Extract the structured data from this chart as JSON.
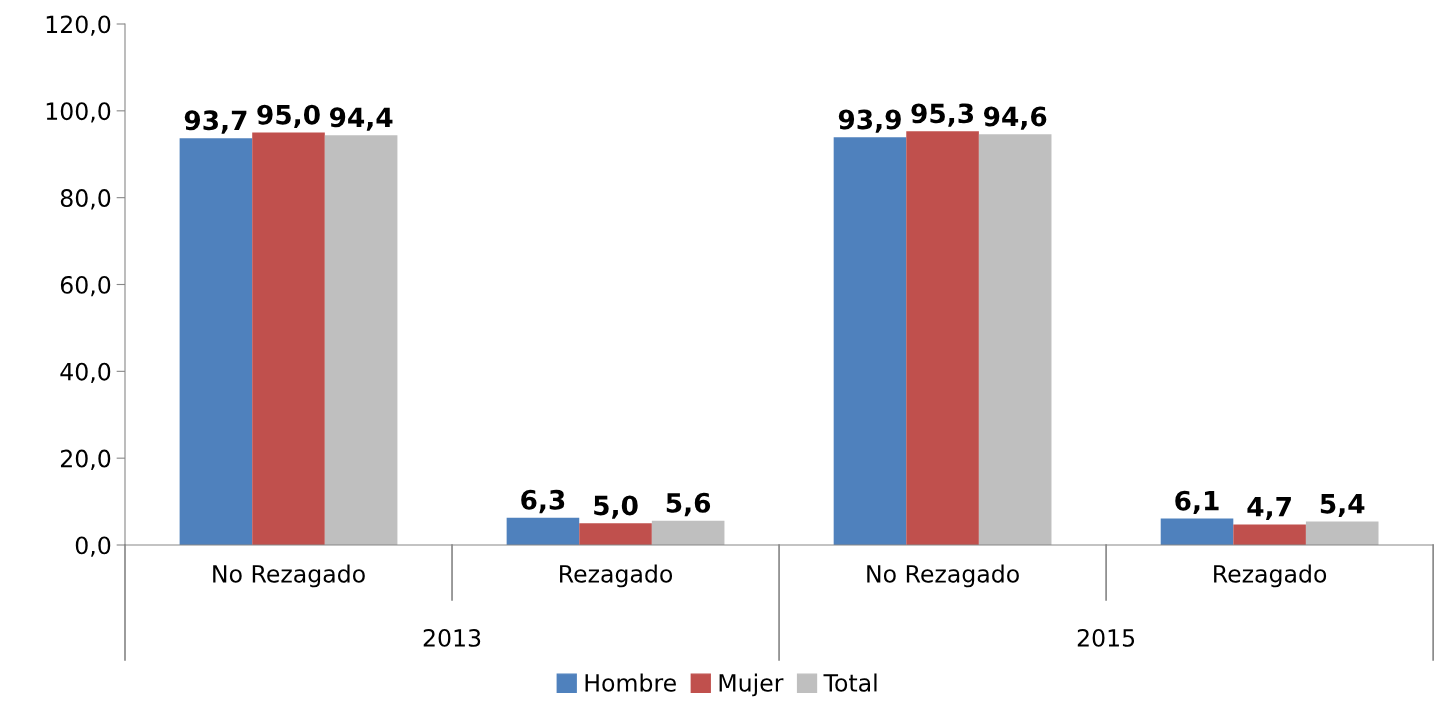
{
  "chart_data": {
    "type": "bar",
    "categories": [
      "No Rezagado",
      "Rezagado",
      "No Rezagado",
      "Rezagado"
    ],
    "annotations": [
      "2013",
      "2015"
    ],
    "series": [
      {
        "name": "Hombre",
        "color": "#4f81bd",
        "values": [
          93.7,
          6.3,
          93.9,
          6.1
        ],
        "value_labels": [
          "93,7",
          "6,3",
          "93,9",
          "6,1"
        ]
      },
      {
        "name": "Mujer",
        "color": "#c0504d",
        "values": [
          95.0,
          5.0,
          95.3,
          4.7
        ],
        "value_labels": [
          "95,0",
          "5,0",
          "95,3",
          "4,7"
        ]
      },
      {
        "name": "Total",
        "color": "#bfbfbf",
        "values": [
          94.4,
          5.6,
          94.6,
          5.4
        ],
        "value_labels": [
          "94,4",
          "5,6",
          "94,6",
          "5,4"
        ]
      }
    ],
    "ylim": [
      0,
      120
    ],
    "yticks": [
      {
        "value": 0,
        "label": "0,0"
      },
      {
        "value": 20,
        "label": "20,0"
      },
      {
        "value": 40,
        "label": "40,0"
      },
      {
        "value": 60,
        "label": "60,0"
      },
      {
        "value": 80,
        "label": "80,0"
      },
      {
        "value": 100,
        "label": "100,0"
      },
      {
        "value": 120,
        "label": "120,0"
      }
    ],
    "grid": false,
    "legend": "bottom"
  }
}
